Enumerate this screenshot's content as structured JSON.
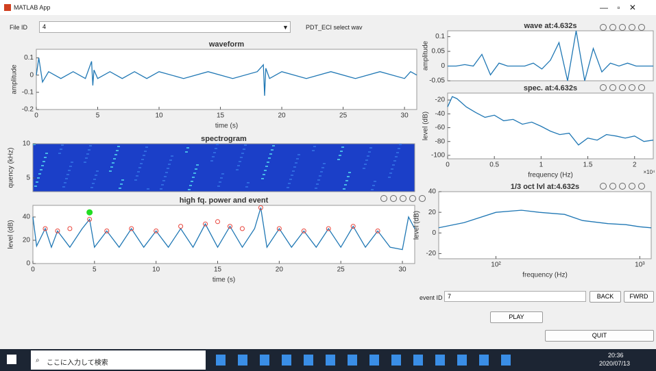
{
  "window": {
    "title": "MATLAB App"
  },
  "controls": {
    "file_id_label": "File ID",
    "file_id_value": "4",
    "pdt_label": "PDT_ECI select wav",
    "event_id_label": "event ID",
    "event_id_value": "7",
    "back": "BACK",
    "fwrd": "FWRD",
    "play": "PLAY",
    "quit": "QUIT"
  },
  "plots": [
    {
      "type": "line",
      "title": "waveform",
      "xlabel": "time (s)",
      "ylabel": "amplitude",
      "xlim": [
        0,
        31
      ],
      "ylim": [
        -0.2,
        0.15
      ],
      "xticks": [
        0,
        5,
        10,
        15,
        20,
        25,
        30
      ],
      "yticks": [
        -0.2,
        -0.1,
        0,
        0.1
      ],
      "series": [
        {
          "color": "#1f77b4",
          "x": [
            0,
            0.2,
            0.5,
            1,
            2,
            3,
            4,
            4.5,
            4.6,
            4.7,
            5,
            6,
            7,
            8,
            9,
            10,
            12,
            14,
            16,
            18,
            18.5,
            18.6,
            18.7,
            19,
            20,
            22,
            24,
            26,
            28,
            30,
            30.5,
            31
          ],
          "values": [
            0,
            0.1,
            -0.04,
            0.02,
            -0.02,
            0.02,
            -0.02,
            0.08,
            -0.06,
            0.03,
            -0.02,
            0.02,
            -0.02,
            0.02,
            -0.02,
            0.02,
            -0.02,
            0.02,
            -0.02,
            0.02,
            0.06,
            -0.12,
            0.04,
            -0.02,
            0.02,
            -0.02,
            0.02,
            -0.02,
            0.02,
            -0.02,
            0.02,
            0
          ]
        }
      ]
    },
    {
      "type": "heatmap",
      "title": "spectrogram",
      "ylabel": "quency (kHz)",
      "xlim": [
        0,
        31
      ],
      "ylim": [
        3,
        10
      ],
      "yticks": [
        5,
        10
      ],
      "series": []
    },
    {
      "type": "line",
      "title": "high fq. power and event",
      "xlabel": "time (s)",
      "ylabel": "level (dB)",
      "xlim": [
        0,
        31
      ],
      "ylim": [
        0,
        50
      ],
      "xticks": [
        0,
        5,
        10,
        15,
        20,
        25,
        30
      ],
      "yticks": [
        0,
        20,
        40
      ],
      "series": [
        {
          "color": "#1f77b4",
          "x": [
            0,
            0.3,
            1,
            1.5,
            2,
            3,
            4,
            4.6,
            5,
            6,
            7,
            8,
            9,
            10,
            11,
            12,
            13,
            14,
            15,
            16,
            17,
            18,
            18.5,
            19,
            20,
            21,
            22,
            23,
            24,
            25,
            26,
            27,
            28,
            29,
            30,
            30.5,
            31
          ],
          "values": [
            40,
            15,
            30,
            14,
            28,
            14,
            30,
            38,
            14,
            28,
            14,
            30,
            14,
            28,
            14,
            30,
            14,
            34,
            14,
            32,
            14,
            30,
            48,
            14,
            30,
            14,
            28,
            14,
            30,
            14,
            32,
            14,
            28,
            14,
            12,
            40,
            30
          ]
        },
        {
          "color": "#e8433a",
          "marker": "o",
          "x": [
            1,
            2,
            3,
            4.6,
            6,
            8,
            10,
            12,
            14,
            15,
            16,
            17,
            18.5,
            20,
            22,
            24,
            26,
            28
          ],
          "values": [
            30,
            28,
            30,
            38,
            28,
            30,
            28,
            32,
            34,
            36,
            32,
            30,
            48,
            30,
            28,
            30,
            32,
            28
          ]
        },
        {
          "color": "#22dd22",
          "marker": "dot",
          "x": [
            4.6
          ],
          "values": [
            44
          ]
        }
      ]
    },
    {
      "type": "line",
      "title": "wave at:4.632s",
      "ylabel": "amplitude",
      "xlim": [
        0,
        96
      ],
      "ylim": [
        -0.05,
        0.12
      ],
      "yticks": [
        -0.05,
        0,
        0.05,
        0.1
      ],
      "series": [
        {
          "color": "#1f77b4",
          "x": [
            0,
            4,
            8,
            12,
            16,
            20,
            24,
            28,
            32,
            36,
            40,
            44,
            48,
            52,
            56,
            60,
            64,
            68,
            72,
            76,
            80,
            84,
            88,
            92,
            96
          ],
          "values": [
            0,
            0,
            0.005,
            0,
            0.04,
            -0.03,
            0.01,
            0,
            0,
            0,
            0.01,
            -0.01,
            0.02,
            0.08,
            -0.05,
            0.12,
            -0.05,
            0.06,
            -0.02,
            0.01,
            0,
            0.01,
            0,
            0,
            0
          ]
        }
      ]
    },
    {
      "type": "line",
      "title": "spec. at:4.632s",
      "xlabel": "frequency (Hz)",
      "x_exponent": "×10⁴",
      "ylabel": "level (dB)",
      "xlim": [
        0,
        2.2
      ],
      "ylim": [
        -105,
        -10
      ],
      "xticks": [
        0,
        0.5,
        1,
        1.5,
        2
      ],
      "yticks": [
        -100,
        -80,
        -60,
        -40,
        -20
      ],
      "series": [
        {
          "color": "#1f77b4",
          "x": [
            0,
            0.05,
            0.1,
            0.2,
            0.3,
            0.4,
            0.5,
            0.6,
            0.7,
            0.8,
            0.9,
            1,
            1.1,
            1.2,
            1.3,
            1.4,
            1.5,
            1.6,
            1.7,
            1.8,
            1.9,
            2,
            2.1,
            2.2
          ],
          "values": [
            -30,
            -15,
            -18,
            -30,
            -38,
            -45,
            -42,
            -50,
            -48,
            -55,
            -52,
            -58,
            -65,
            -70,
            -68,
            -85,
            -75,
            -78,
            -70,
            -72,
            -75,
            -72,
            -80,
            -78
          ]
        }
      ]
    },
    {
      "type": "line",
      "title": "1/3 oct lvl at:4.632s",
      "xlabel": "frequency (Hz)",
      "ylabel": "level (dB)",
      "xscale": "log",
      "xlim": [
        40,
        1200
      ],
      "ylim": [
        -25,
        40
      ],
      "xticks": [
        {
          "value": 100,
          "label": "10²"
        },
        {
          "value": 1000,
          "label": "10³"
        }
      ],
      "yticks": [
        -20,
        0,
        20,
        40
      ],
      "series": [
        {
          "color": "#1f77b4",
          "x": [
            40,
            60,
            100,
            150,
            200,
            300,
            400,
            600,
            800,
            1000,
            1200
          ],
          "values": [
            5,
            10,
            20,
            22,
            20,
            18,
            12,
            9,
            8,
            6,
            5
          ]
        }
      ]
    }
  ],
  "taskbar": {
    "search": "ここに入力して検索",
    "time": "20:36",
    "date": "2020/07/13"
  }
}
